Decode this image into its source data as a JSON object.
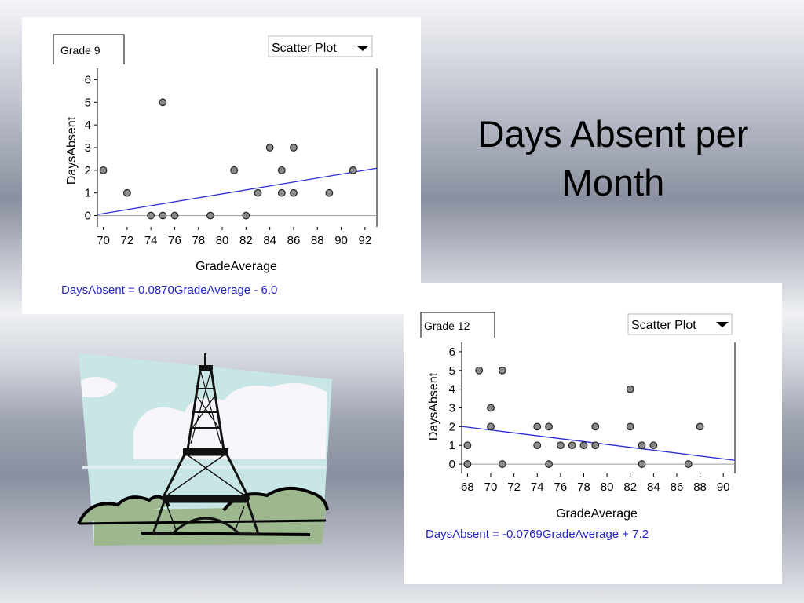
{
  "slide": {
    "title": "Days Absent per Month"
  },
  "chart_data": [
    {
      "type": "scatter",
      "tab_label": "Grade 9",
      "dropdown_label": "Scatter Plot",
      "xlabel": "GradeAverage",
      "ylabel": "DaysAbsent",
      "xlim": [
        69.5,
        93
      ],
      "ylim": [
        -0.5,
        6.5
      ],
      "xticks": [
        70,
        72,
        74,
        76,
        78,
        80,
        82,
        84,
        86,
        88,
        90,
        92
      ],
      "yticks": [
        0,
        1,
        2,
        3,
        4,
        5,
        6
      ],
      "points": [
        {
          "x": 70,
          "y": 2
        },
        {
          "x": 72,
          "y": 1
        },
        {
          "x": 74,
          "y": 0
        },
        {
          "x": 75,
          "y": 0
        },
        {
          "x": 75,
          "y": 5
        },
        {
          "x": 76,
          "y": 0
        },
        {
          "x": 79,
          "y": 0
        },
        {
          "x": 81,
          "y": 2
        },
        {
          "x": 82,
          "y": 0
        },
        {
          "x": 83,
          "y": 1
        },
        {
          "x": 84,
          "y": 3
        },
        {
          "x": 85,
          "y": 2
        },
        {
          "x": 85,
          "y": 1
        },
        {
          "x": 86,
          "y": 3
        },
        {
          "x": 86,
          "y": 1
        },
        {
          "x": 89,
          "y": 1
        },
        {
          "x": 91,
          "y": 2
        }
      ],
      "fit": {
        "slope": 0.087,
        "intercept": -6.0
      },
      "equation": "DaysAbsent = 0.0870GradeAverage - 6.0",
      "grid": false,
      "colors": {
        "trend": "#2b2bd9",
        "equation": "#2424c8",
        "marker": "#8a8a8a"
      }
    },
    {
      "type": "scatter",
      "tab_label": "Grade 12",
      "dropdown_label": "Scatter Plot",
      "xlabel": "GradeAverage",
      "ylabel": "DaysAbsent",
      "xlim": [
        67.5,
        91
      ],
      "ylim": [
        -0.5,
        6.5
      ],
      "xticks": [
        68,
        70,
        72,
        74,
        76,
        78,
        80,
        82,
        84,
        86,
        88,
        90
      ],
      "yticks": [
        0,
        1,
        2,
        3,
        4,
        5,
        6
      ],
      "points": [
        {
          "x": 68,
          "y": 1
        },
        {
          "x": 68,
          "y": 0
        },
        {
          "x": 69,
          "y": 5
        },
        {
          "x": 70,
          "y": 3
        },
        {
          "x": 70,
          "y": 2
        },
        {
          "x": 71,
          "y": 5
        },
        {
          "x": 71,
          "y": 0
        },
        {
          "x": 74,
          "y": 2
        },
        {
          "x": 74,
          "y": 1
        },
        {
          "x": 75,
          "y": 2
        },
        {
          "x": 75,
          "y": 0
        },
        {
          "x": 76,
          "y": 1
        },
        {
          "x": 77,
          "y": 1
        },
        {
          "x": 78,
          "y": 1
        },
        {
          "x": 79,
          "y": 2
        },
        {
          "x": 79,
          "y": 1
        },
        {
          "x": 82,
          "y": 4
        },
        {
          "x": 82,
          "y": 2
        },
        {
          "x": 83,
          "y": 1
        },
        {
          "x": 83,
          "y": 0
        },
        {
          "x": 84,
          "y": 1
        },
        {
          "x": 87,
          "y": 0
        },
        {
          "x": 88,
          "y": 2
        }
      ],
      "fit": {
        "slope": -0.0769,
        "intercept": 7.2
      },
      "equation": "DaysAbsent = -0.0769GradeAverage + 7.2",
      "grid": false,
      "colors": {
        "trend": "#2b2bd9",
        "equation": "#2424c8",
        "marker": "#8a8a8a"
      }
    }
  ]
}
